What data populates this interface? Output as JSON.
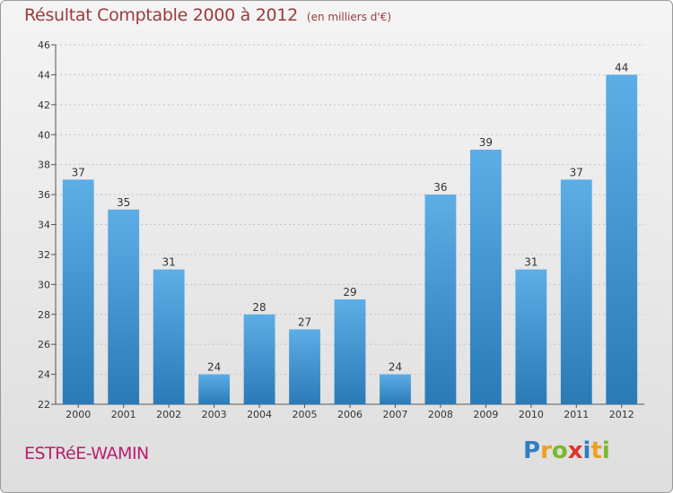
{
  "chart_data": {
    "type": "bar",
    "title": "Résultat Comptable 2000 à 2012",
    "subtitle": "(en milliers d'€)",
    "categories": [
      "2000",
      "2001",
      "2002",
      "2003",
      "2004",
      "2005",
      "2006",
      "2007",
      "2008",
      "2009",
      "2010",
      "2011",
      "2012"
    ],
    "values": [
      37,
      35,
      31,
      24,
      28,
      27,
      29,
      24,
      36,
      39,
      31,
      37,
      44
    ],
    "ylim": [
      22,
      46
    ],
    "yticks": [
      22,
      24,
      26,
      28,
      30,
      32,
      34,
      36,
      38,
      40,
      42,
      44,
      46
    ],
    "grid": true,
    "bar_color_top": "#5dade6",
    "bar_color_bottom": "#2a7ab8"
  },
  "commune": "ESTRéE-WAMIN",
  "logo": {
    "letters": [
      "P",
      "r",
      "o",
      "x",
      "i",
      "t",
      "i"
    ],
    "colors": [
      "#2f7fc1",
      "#f0a020",
      "#7bb82e",
      "#e0332c",
      "#2f7fc1",
      "#f0a020",
      "#7bb82e"
    ]
  }
}
